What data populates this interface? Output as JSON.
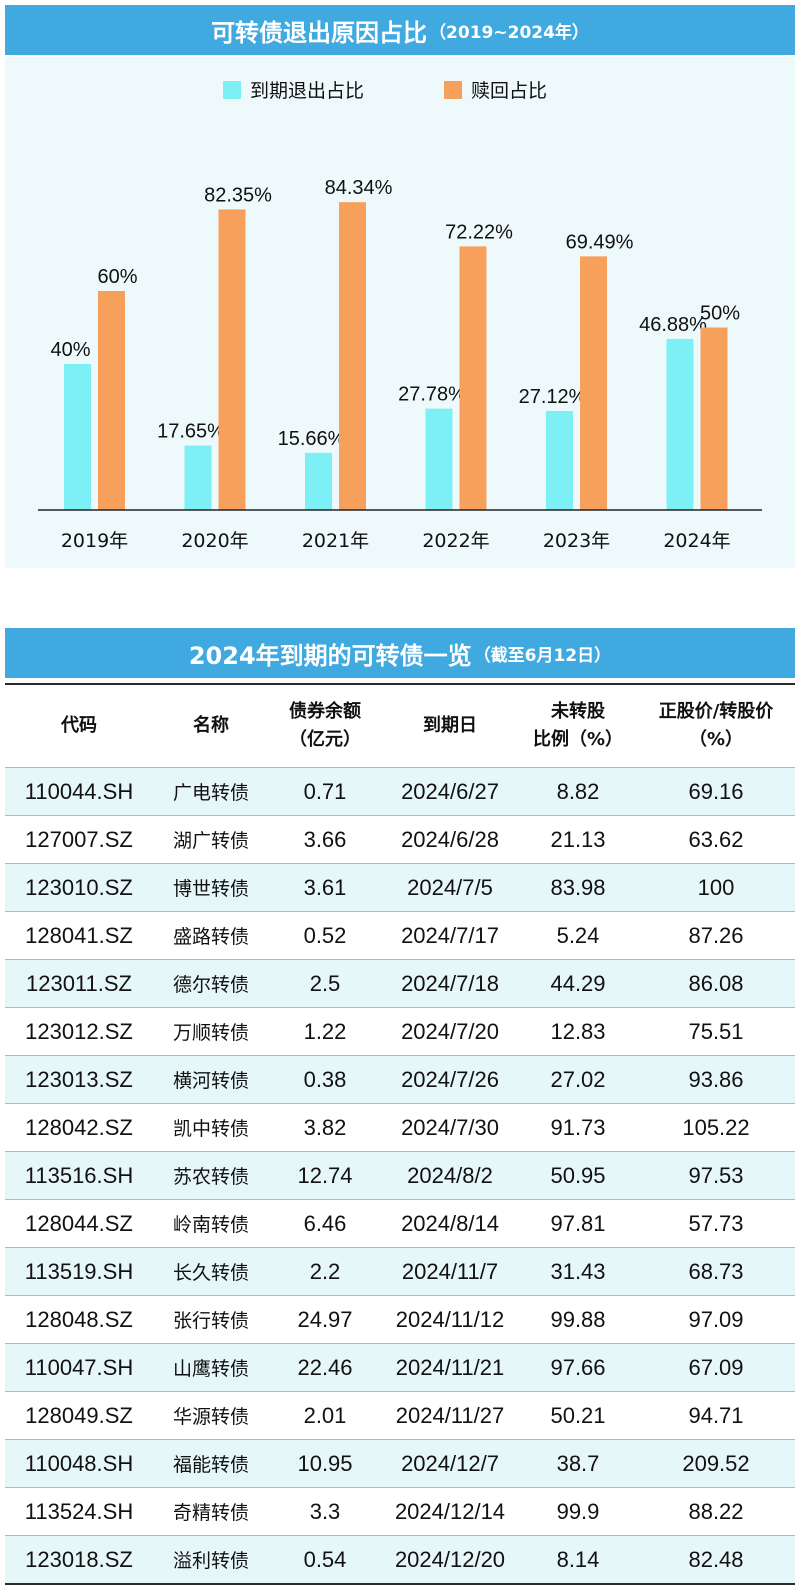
{
  "chart_title": {
    "main": "可转债退出原因占比",
    "paren": "（2019~2024年）"
  },
  "colors": {
    "maturity": "#7cf0f4",
    "redemption": "#f7a05c",
    "title_bg": "#3fa9e0"
  },
  "chart_data": {
    "type": "bar",
    "title": "可转债退出原因占比（2019~2024年）",
    "categories": [
      "2019年",
      "2020年",
      "2021年",
      "2022年",
      "2023年",
      "2024年"
    ],
    "series": [
      {
        "name": "到期退出占比",
        "values": [
          40,
          17.65,
          15.66,
          27.78,
          27.12,
          46.88
        ],
        "labels": [
          "40%",
          "17.65%",
          "15.66%",
          "27.78%",
          "27.12%",
          "46.88%"
        ]
      },
      {
        "name": "赎回占比",
        "values": [
          60,
          82.35,
          84.34,
          72.22,
          69.49,
          50
        ],
        "labels": [
          "60%",
          "82.35%",
          "84.34%",
          "72.22%",
          "69.49%",
          "50%"
        ]
      }
    ],
    "ylim": [
      0,
      100
    ],
    "grid": false,
    "legend": "top-center"
  },
  "table_title": {
    "main": "2024年到期的可转债一览",
    "paren": "（截至6月12日）"
  },
  "table": {
    "headers": [
      {
        "line1": "代码",
        "line2": ""
      },
      {
        "line1": "名称",
        "line2": ""
      },
      {
        "line1": "债券余额",
        "line2": "（亿元）"
      },
      {
        "line1": "到期日",
        "line2": ""
      },
      {
        "line1": "未转股",
        "line2": "比例（%）"
      },
      {
        "line1": "正股价/转股价",
        "line2": "（%）"
      }
    ],
    "rows": [
      [
        "110044.SH",
        "广电转债",
        "0.71",
        "2024/6/27",
        "8.82",
        "69.16"
      ],
      [
        "127007.SZ",
        "湖广转债",
        "3.66",
        "2024/6/28",
        "21.13",
        "63.62"
      ],
      [
        "123010.SZ",
        "博世转债",
        "3.61",
        "2024/7/5",
        "83.98",
        "100"
      ],
      [
        "128041.SZ",
        "盛路转债",
        "0.52",
        "2024/7/17",
        "5.24",
        "87.26"
      ],
      [
        "123011.SZ",
        "德尔转债",
        "2.5",
        "2024/7/18",
        "44.29",
        "86.08"
      ],
      [
        "123012.SZ",
        "万顺转债",
        "1.22",
        "2024/7/20",
        "12.83",
        "75.51"
      ],
      [
        "123013.SZ",
        "横河转债",
        "0.38",
        "2024/7/26",
        "27.02",
        "93.86"
      ],
      [
        "128042.SZ",
        "凯中转债",
        "3.82",
        "2024/7/30",
        "91.73",
        "105.22"
      ],
      [
        "113516.SH",
        "苏农转债",
        "12.74",
        "2024/8/2",
        "50.95",
        "97.53"
      ],
      [
        "128044.SZ",
        "岭南转债",
        "6.46",
        "2024/8/14",
        "97.81",
        "57.73"
      ],
      [
        "113519.SH",
        "长久转债",
        "2.2",
        "2024/11/7",
        "31.43",
        "68.73"
      ],
      [
        "128048.SZ",
        "张行转债",
        "24.97",
        "2024/11/12",
        "99.88",
        "97.09"
      ],
      [
        "110047.SH",
        "山鹰转债",
        "22.46",
        "2024/11/21",
        "97.66",
        "67.09"
      ],
      [
        "128049.SZ",
        "华源转债",
        "2.01",
        "2024/11/27",
        "50.21",
        "94.71"
      ],
      [
        "110048.SH",
        "福能转债",
        "10.95",
        "2024/12/7",
        "38.7",
        "209.52"
      ],
      [
        "113524.SH",
        "奇精转债",
        "3.3",
        "2024/12/14",
        "99.9",
        "88.22"
      ],
      [
        "123018.SZ",
        "溢利转债",
        "0.54",
        "2024/12/20",
        "8.14",
        "82.48"
      ]
    ]
  }
}
